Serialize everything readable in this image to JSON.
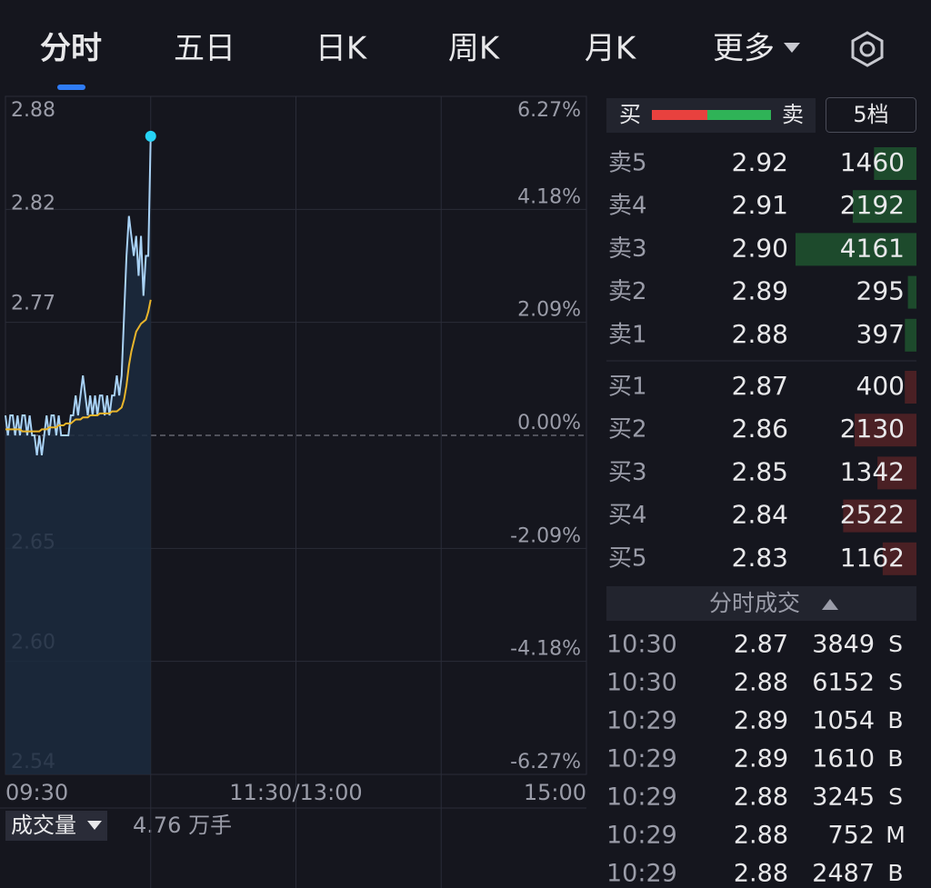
{
  "tabs": [
    "分时",
    "五日",
    "日K",
    "周K",
    "月K",
    "更多"
  ],
  "chart_data": {
    "type": "line",
    "x": [
      0,
      1,
      2,
      3,
      4,
      5,
      6,
      7,
      8,
      9,
      10,
      11,
      12,
      13,
      14,
      15,
      16,
      17,
      18,
      19,
      20,
      21,
      22,
      23,
      24,
      25,
      26,
      27,
      28,
      29,
      30,
      31,
      32,
      33,
      34,
      35,
      36,
      37,
      38,
      39,
      40,
      41,
      42,
      43,
      44,
      45,
      46,
      47,
      48,
      49,
      50,
      51,
      52,
      53,
      54,
      55,
      56,
      57,
      58,
      59,
      60
    ],
    "xlim": [
      0,
      240
    ],
    "xticks": [
      {
        "value": 0,
        "label": "09:30"
      },
      {
        "value": 120,
        "label": "11:30/13:00"
      },
      {
        "value": 240,
        "label": "15:00"
      }
    ],
    "ylim": [
      2.54,
      2.88
    ],
    "yticks": [
      2.88,
      2.82,
      2.77,
      2.65,
      {
        "value": 2.6,
        "label": "2.60"
      },
      2.54
    ],
    "y2lim": [
      -6.27,
      6.27
    ],
    "y2ticks": [
      {
        "value": 6.27,
        "label": "6.27%"
      },
      {
        "value": 4.18,
        "label": "4.18%"
      },
      {
        "value": 2.09,
        "label": "2.09%"
      },
      {
        "value": 0,
        "label": "0.00%"
      },
      {
        "value": -2.09,
        "label": "-2.09%"
      },
      {
        "value": -4.18,
        "label": "-4.18%"
      },
      {
        "value": -6.27,
        "label": "-6.27%"
      }
    ],
    "grid": true,
    "series": [
      {
        "color": "#a9d2f5",
        "values": [
          2.72,
          2.71,
          2.72,
          2.72,
          2.71,
          2.72,
          2.71,
          2.72,
          2.72,
          2.71,
          2.72,
          2.71,
          2.71,
          2.7,
          2.71,
          2.7,
          2.71,
          2.72,
          2.71,
          2.72,
          2.72,
          2.71,
          2.72,
          2.71,
          2.71,
          2.71,
          2.71,
          2.72,
          2.72,
          2.73,
          2.72,
          2.73,
          2.74,
          2.73,
          2.72,
          2.73,
          2.72,
          2.73,
          2.72,
          2.73,
          2.73,
          2.72,
          2.73,
          2.72,
          2.73,
          2.73,
          2.74,
          2.73,
          2.74,
          2.77,
          2.8,
          2.82,
          2.81,
          2.8,
          2.81,
          2.79,
          2.81,
          2.78,
          2.8,
          2.8,
          2.86
        ]
      },
      {
        "color": "#e9b52b",
        "values": [
          2.713,
          2.713,
          2.713,
          2.713,
          2.713,
          2.713,
          2.713,
          2.712,
          2.712,
          2.712,
          2.712,
          2.712,
          2.712,
          2.712,
          2.712,
          2.713,
          2.713,
          2.713,
          2.714,
          2.714,
          2.714,
          2.714,
          2.715,
          2.715,
          2.715,
          2.716,
          2.716,
          2.716,
          2.717,
          2.718,
          2.718,
          2.718,
          2.719,
          2.719,
          2.719,
          2.72,
          2.72,
          2.72,
          2.72,
          2.721,
          2.721,
          2.721,
          2.721,
          2.721,
          2.722,
          2.722,
          2.722,
          2.723,
          2.724,
          2.728,
          2.735,
          2.745,
          2.752,
          2.757,
          2.762,
          2.764,
          2.766,
          2.767,
          2.768,
          2.772,
          2.778
        ]
      }
    ]
  },
  "volume": {
    "label": "成交量",
    "total": "4.76 万手"
  },
  "order_book": {
    "buy_label": "买",
    "sell_label": "卖",
    "depth": "5档",
    "asks": [
      {
        "label": "卖5",
        "price": "2.92",
        "volume": 1460
      },
      {
        "label": "卖4",
        "price": "2.91",
        "volume": 2192
      },
      {
        "label": "卖3",
        "price": "2.90",
        "volume": 4161
      },
      {
        "label": "卖2",
        "price": "2.89",
        "volume": 295
      },
      {
        "label": "卖1",
        "price": "2.88",
        "volume": 397
      }
    ],
    "bids": [
      {
        "label": "买1",
        "price": "2.87",
        "volume": 400
      },
      {
        "label": "买2",
        "price": "2.86",
        "volume": 2130
      },
      {
        "label": "买3",
        "price": "2.85",
        "volume": 1342
      },
      {
        "label": "买4",
        "price": "2.84",
        "volume": 2522
      },
      {
        "label": "买5",
        "price": "2.83",
        "volume": 1162
      }
    ]
  },
  "trades": {
    "title": "分时成交",
    "rows": [
      {
        "time": "10:30",
        "price": "2.87",
        "volume": 3849,
        "side": "S",
        "color": "#2fb357"
      },
      {
        "time": "10:30",
        "price": "2.88",
        "volume": 6152,
        "side": "S",
        "color": "#2fb357"
      },
      {
        "time": "10:29",
        "price": "2.89",
        "volume": 1054,
        "side": "B",
        "color": "#e8413e"
      },
      {
        "time": "10:29",
        "price": "2.89",
        "volume": 1610,
        "side": "B",
        "color": "#e8413e"
      },
      {
        "time": "10:29",
        "price": "2.88",
        "volume": 3245,
        "side": "S",
        "color": "#2fb357"
      },
      {
        "time": "10:29",
        "price": "2.88",
        "volume": 752,
        "side": "M",
        "color": "#8a8c96"
      },
      {
        "time": "10:29",
        "price": "2.88",
        "volume": 2487,
        "side": "B",
        "color": "#e8413e"
      }
    ]
  }
}
